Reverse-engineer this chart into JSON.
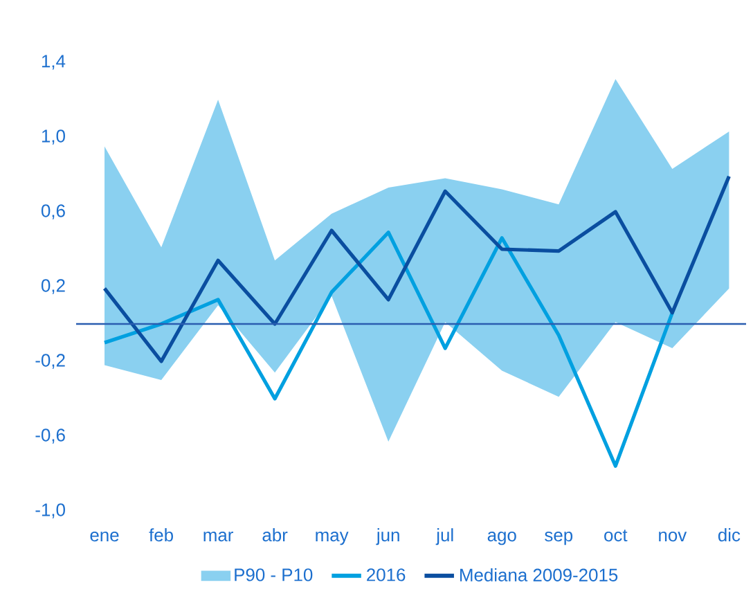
{
  "chart_data": {
    "type": "line",
    "categories": [
      "ene",
      "feb",
      "mar",
      "abr",
      "may",
      "jun",
      "jul",
      "ago",
      "sep",
      "oct",
      "nov",
      "dic"
    ],
    "series": [
      {
        "name": "P90 - P10",
        "type": "area",
        "color": "#8ad0f0",
        "values": [
          null,
          null,
          null,
          null,
          null,
          null,
          null,
          null,
          null,
          null,
          null,
          null
        ],
        "upper": [
          0.95,
          0.41,
          1.2,
          0.34,
          0.59,
          0.73,
          0.78,
          0.72,
          0.64,
          1.31,
          0.83,
          1.03
        ],
        "lower": [
          -0.22,
          -0.3,
          0.1,
          -0.26,
          0.15,
          -0.63,
          0.01,
          -0.25,
          -0.39,
          0.01,
          -0.13,
          0.19
        ]
      },
      {
        "name": "2016",
        "type": "line",
        "color": "#00a0e0",
        "values": [
          -0.1,
          0.0,
          0.13,
          -0.4,
          0.17,
          0.49,
          -0.13,
          0.46,
          -0.06,
          -0.76,
          0.06,
          null
        ]
      },
      {
        "name": "Mediana 2009-2015",
        "type": "line",
        "color": "#0a4ea0",
        "values": [
          0.19,
          -0.2,
          0.34,
          0.0,
          0.5,
          0.13,
          0.71,
          0.4,
          0.39,
          0.6,
          0.06,
          0.79
        ]
      }
    ],
    "ylim": [
      -1.0,
      1.4
    ],
    "yticks": [
      {
        "value": 1.4,
        "label": "1,4"
      },
      {
        "value": 1.0,
        "label": "1,0"
      },
      {
        "value": 0.6,
        "label": "0,6"
      },
      {
        "value": 0.2,
        "label": "0,2"
      },
      {
        "value": -0.2,
        "label": "-0,2"
      },
      {
        "value": -0.6,
        "label": "-0,6"
      },
      {
        "value": -1.0,
        "label": "-1,0"
      }
    ],
    "ref_lines": [
      {
        "axis": "y",
        "value": 0,
        "color": "#2a5db0"
      }
    ],
    "grid": false,
    "legend": "bottom"
  }
}
